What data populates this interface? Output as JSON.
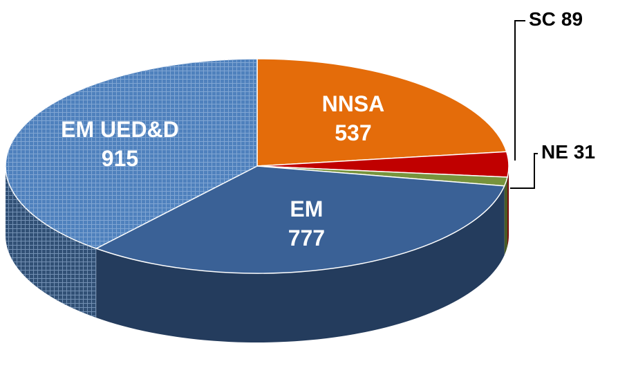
{
  "chart_data": {
    "type": "pie",
    "categories": [
      "NNSA",
      "SC",
      "NE",
      "EM",
      "EM UED&D"
    ],
    "values": [
      537,
      89,
      31,
      777,
      915
    ],
    "colors": [
      "#e46c0a",
      "#c00000",
      "#77933c",
      "#3a6196",
      "#4f81bd"
    ],
    "hatched": [
      false,
      false,
      false,
      false,
      true
    ]
  }
}
